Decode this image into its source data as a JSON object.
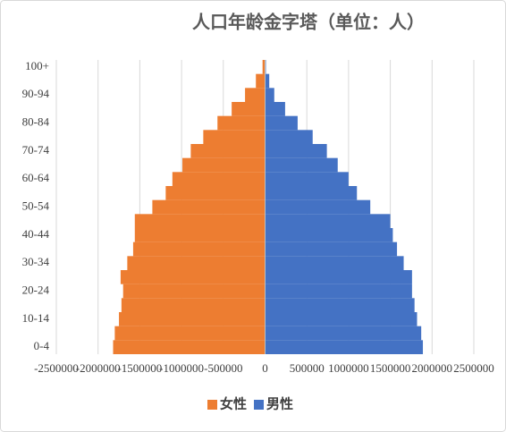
{
  "chart_data": {
    "type": "bar",
    "orientation": "horizontal",
    "title": "人口年龄金字塔（单位：人）",
    "categories": [
      "0-4",
      null,
      "10-14",
      null,
      "20-24",
      null,
      "30-34",
      null,
      "40-44",
      null,
      "50-54",
      null,
      "60-64",
      null,
      "70-74",
      null,
      "80-84",
      null,
      "90-94",
      null,
      "100+"
    ],
    "series": [
      {
        "name": "女性",
        "color": "#ed7d31",
        "values": [
          -1820000,
          -1800000,
          -1750000,
          -1720000,
          -1700000,
          -1730000,
          -1650000,
          -1580000,
          -1560000,
          -1560000,
          -1350000,
          -1190000,
          -1110000,
          -990000,
          -890000,
          -740000,
          -570000,
          -400000,
          -240000,
          -110000,
          -30000
        ]
      },
      {
        "name": "男性",
        "color": "#4472c4",
        "values": [
          1890000,
          1870000,
          1820000,
          1790000,
          1760000,
          1760000,
          1660000,
          1580000,
          1530000,
          1500000,
          1260000,
          1100000,
          1000000,
          870000,
          740000,
          570000,
          390000,
          240000,
          110000,
          50000,
          10000
        ]
      }
    ],
    "xlim": [
      -2500000,
      2500000
    ],
    "xticks": [
      -2500000,
      -2000000,
      -1500000,
      -1000000,
      -500000,
      0,
      500000,
      1000000,
      1500000,
      2000000,
      2500000
    ],
    "grid": true,
    "legend": "bottom"
  }
}
